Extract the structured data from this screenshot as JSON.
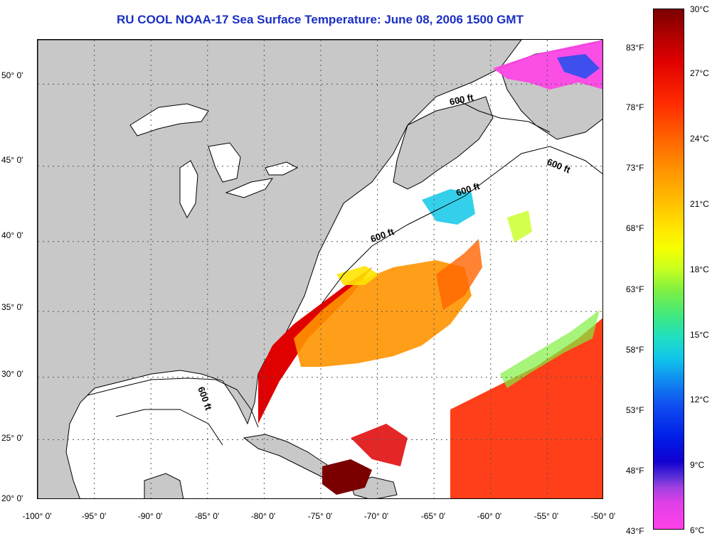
{
  "title": "RU COOL  NOAA-17  Sea Surface Temperature:  June 08, 2006 1500 GMT",
  "map": {
    "lon_range": [
      -100,
      -50
    ],
    "lat_range": [
      20,
      52.5
    ],
    "grid": "dotted",
    "contour_label": "600 ft",
    "lat_labels": [
      "20° 0'",
      "25° 0'",
      "30° 0'",
      "35° 0'",
      "40° 0'",
      "45° 0'",
      "50° 0'"
    ],
    "lon_labels": [
      "-100° 0'",
      "-95° 0'",
      "-90° 0'",
      "-85° 0'",
      "-80° 0'",
      "-75° 0'",
      "-70° 0'",
      "-65° 0'",
      "-60° 0'",
      "-55° 0'",
      "-50° 0'"
    ],
    "colors": {
      "land": "#c8c8c8",
      "no_data": "#ffffff",
      "title": "#1a2fc4"
    }
  },
  "colorbar": {
    "fahrenheit_labels": [
      "83°F",
      "78°F",
      "73°F",
      "68°F",
      "63°F",
      "58°F",
      "53°F",
      "48°F",
      "43°F"
    ],
    "celsius_labels": [
      "30°C",
      "27°C",
      "24°C",
      "21°C",
      "18°C",
      "15°C",
      "12°C",
      "9°C",
      "6°C"
    ],
    "range_celsius": [
      6,
      30
    ]
  }
}
